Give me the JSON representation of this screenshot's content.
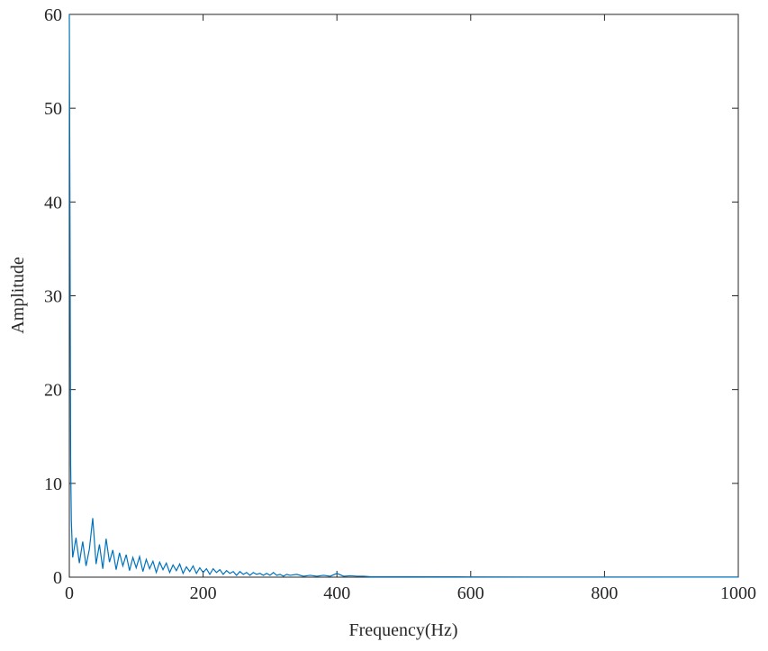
{
  "chart_data": {
    "type": "line",
    "xlabel": "Frequency(Hz)",
    "ylabel": "Amplitude",
    "color": "#0072bd",
    "x": [
      0,
      1,
      2,
      3,
      5,
      10,
      15,
      20,
      25,
      30,
      35,
      40,
      45,
      50,
      55,
      60,
      65,
      70,
      75,
      80,
      85,
      90,
      95,
      100,
      105,
      110,
      115,
      120,
      125,
      130,
      135,
      140,
      145,
      150,
      155,
      160,
      165,
      170,
      175,
      180,
      185,
      190,
      195,
      200,
      205,
      210,
      215,
      220,
      225,
      230,
      235,
      240,
      245,
      250,
      255,
      260,
      265,
      270,
      275,
      280,
      285,
      290,
      295,
      300,
      305,
      310,
      315,
      320,
      325,
      330,
      340,
      350,
      360,
      370,
      380,
      390,
      400,
      410,
      420,
      430,
      440,
      450,
      500,
      600,
      700,
      800,
      900,
      1000
    ],
    "values": [
      60,
      38,
      12,
      6,
      2.1,
      4.2,
      1.5,
      3.8,
      1.2,
      3.0,
      6.3,
      1.4,
      3.5,
      0.9,
      4.1,
      1.6,
      2.9,
      0.8,
      2.6,
      1.2,
      2.4,
      0.7,
      2.1,
      1.0,
      2.2,
      0.6,
      1.9,
      0.9,
      1.7,
      0.5,
      1.6,
      0.8,
      1.5,
      0.5,
      1.3,
      0.7,
      1.4,
      0.4,
      1.1,
      0.6,
      1.2,
      0.4,
      1.0,
      0.5,
      0.9,
      0.3,
      0.9,
      0.5,
      0.8,
      0.3,
      0.7,
      0.4,
      0.6,
      0.2,
      0.6,
      0.3,
      0.5,
      0.2,
      0.5,
      0.3,
      0.4,
      0.2,
      0.4,
      0.2,
      0.5,
      0.2,
      0.3,
      0.1,
      0.3,
      0.2,
      0.3,
      0.1,
      0.2,
      0.1,
      0.2,
      0.1,
      0.4,
      0.1,
      0.15,
      0.1,
      0.1,
      0.05,
      0.05,
      0.03,
      0.02,
      0.02,
      0.01,
      0.01
    ],
    "xlim": [
      0,
      1000
    ],
    "xticks": [
      0,
      200,
      400,
      600,
      800,
      1000
    ],
    "ylim": [
      0,
      60
    ],
    "yticks": [
      0,
      10,
      20,
      30,
      40,
      50,
      60
    ]
  }
}
